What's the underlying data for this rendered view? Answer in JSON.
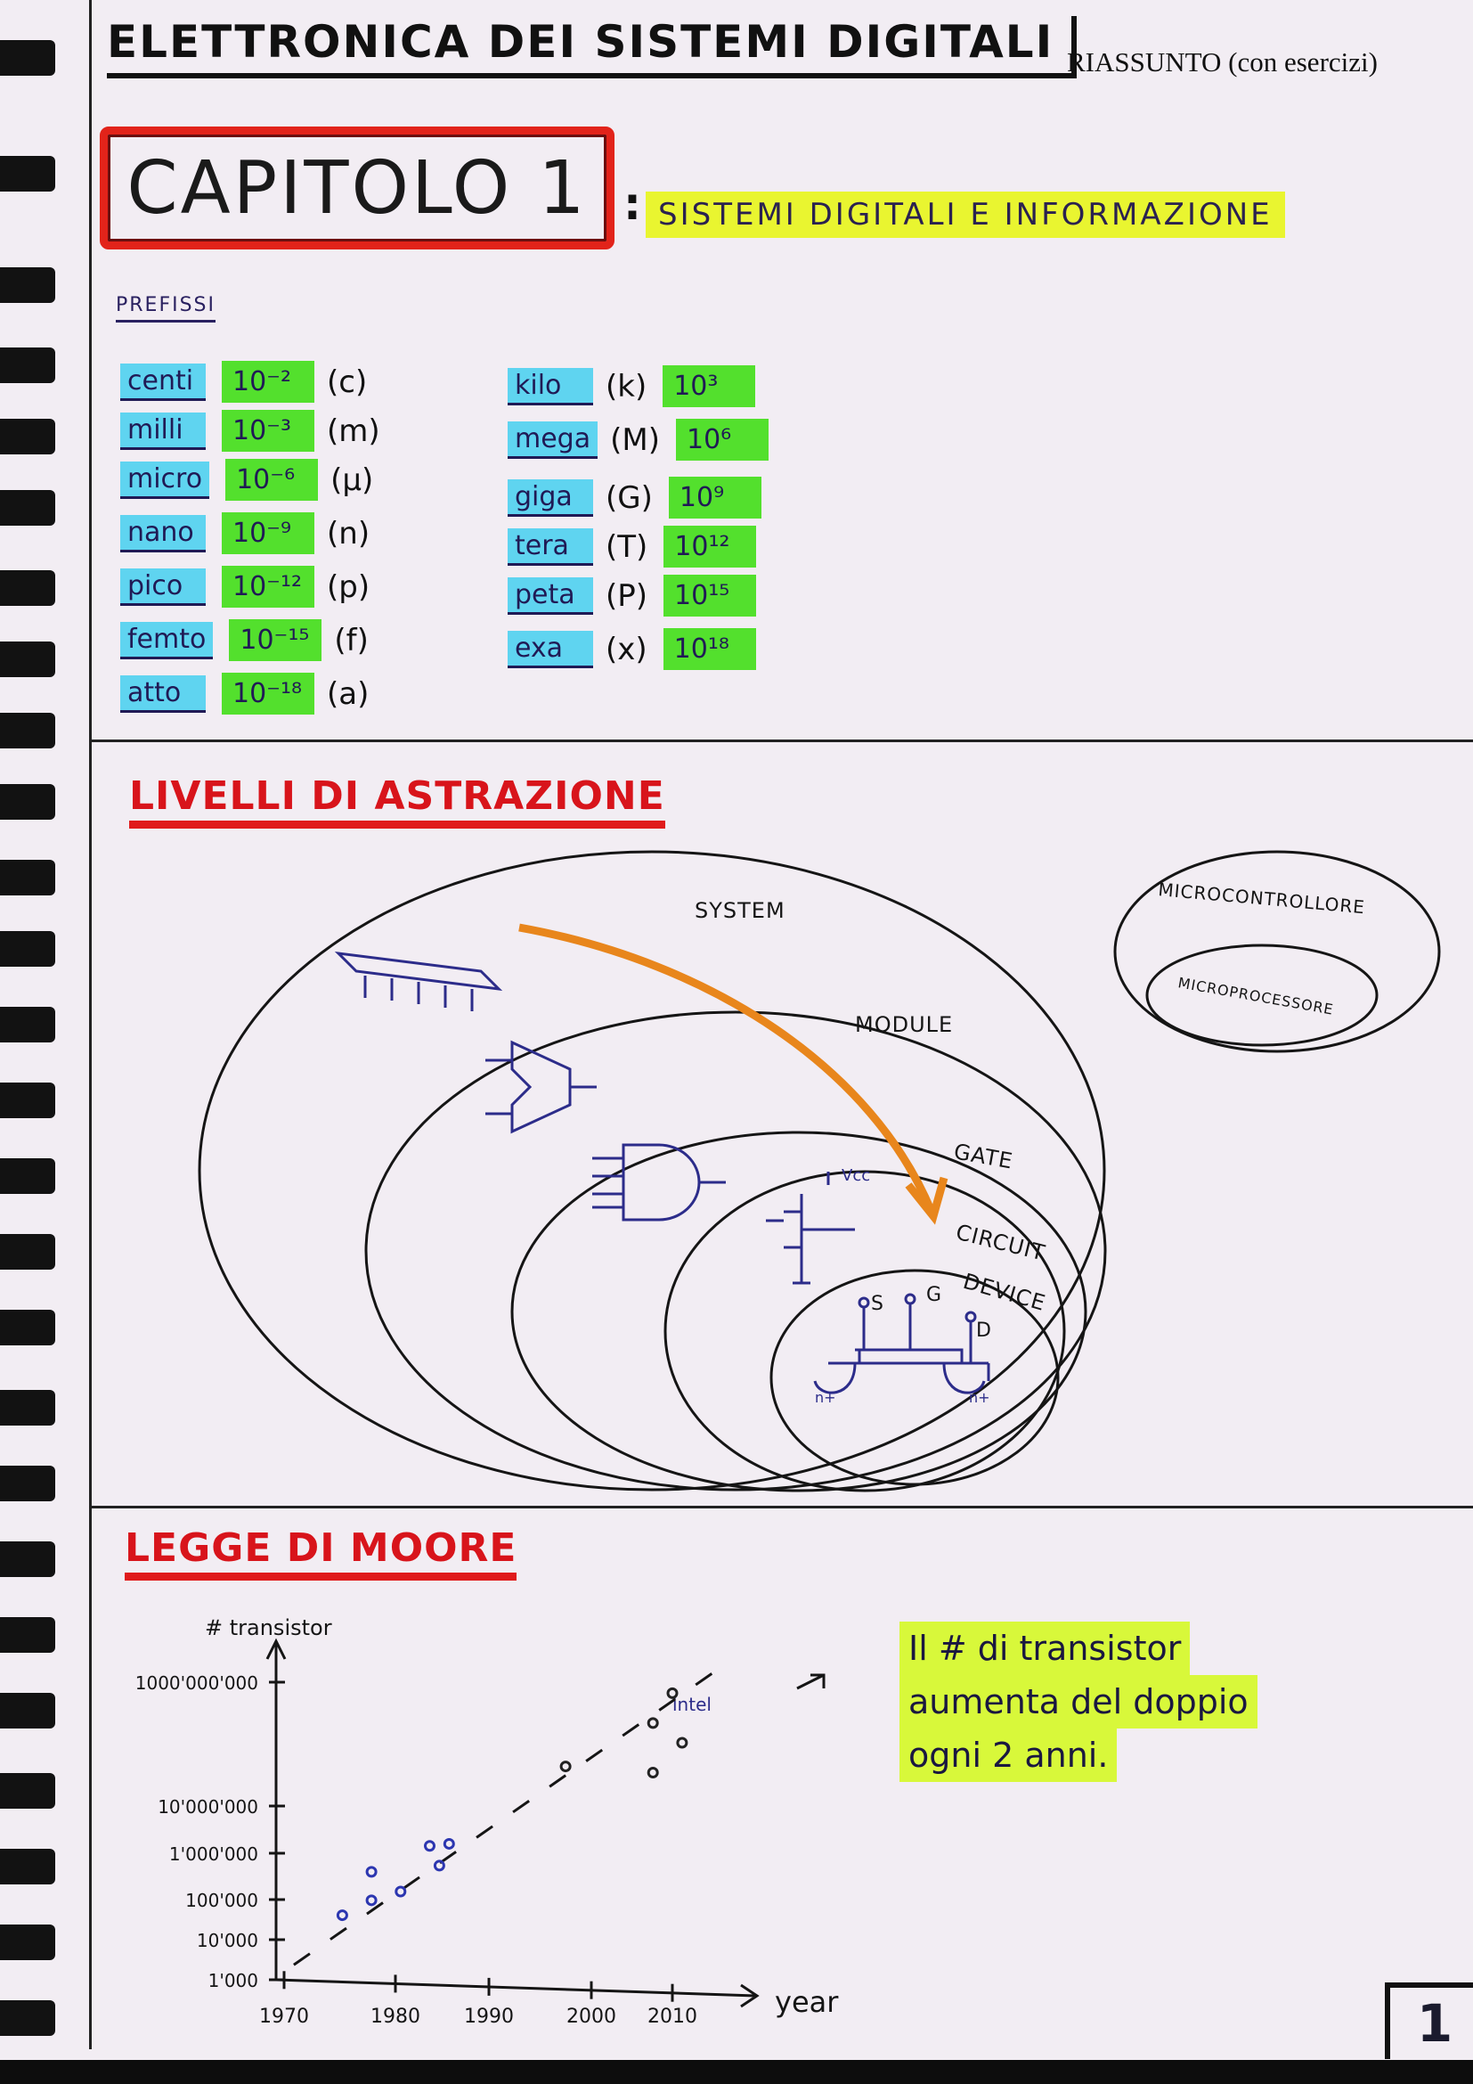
{
  "header": {
    "title": "ELETTRONICA DEI SISTEMI DIGITALI",
    "typed_label": "RIASSUNTO (con esercizi)"
  },
  "chapter": {
    "label": "CAPITOLO 1",
    "subtitle": "SISTEMI DIGITALI E INFORMAZIONE"
  },
  "prefixes": {
    "heading": "PREFISSI",
    "small": [
      {
        "name": "centi",
        "value": "10⁻²",
        "symbol": "(c)"
      },
      {
        "name": "milli",
        "value": "10⁻³",
        "symbol": "(m)"
      },
      {
        "name": "micro",
        "value": "10⁻⁶",
        "symbol": "(μ)"
      },
      {
        "name": "nano",
        "value": "10⁻⁹",
        "symbol": "(n)"
      },
      {
        "name": "pico",
        "value": "10⁻¹²",
        "symbol": "(p)"
      },
      {
        "name": "femto",
        "value": "10⁻¹⁵",
        "symbol": "(f)"
      },
      {
        "name": "atto",
        "value": "10⁻¹⁸",
        "symbol": "(a)"
      }
    ],
    "large": [
      {
        "name": "kilo",
        "value": "10³",
        "symbol": "(k)"
      },
      {
        "name": "mega",
        "value": "10⁶",
        "symbol": "(M)"
      },
      {
        "name": "giga",
        "value": "10⁹",
        "symbol": "(G)"
      },
      {
        "name": "tera",
        "value": "10¹²",
        "symbol": "(T)"
      },
      {
        "name": "peta",
        "value": "10¹⁵",
        "symbol": "(P)"
      },
      {
        "name": "exa",
        "value": "10¹⁸",
        "symbol": "(x)"
      }
    ]
  },
  "abstraction": {
    "heading": "LIVELLI DI ASTRAZIONE",
    "levels": [
      "SYSTEM",
      "MODULE",
      "GATE",
      "CIRCUIT",
      "DEVICE"
    ],
    "micro": [
      "MICROCONTROLLORE",
      "MICROPROCESSORE"
    ],
    "circuit_label": "Vcc",
    "device_terminals": [
      "S",
      "G",
      "D"
    ],
    "device_regions": [
      "n+",
      "n+"
    ],
    "arrow_color": "#e8861c"
  },
  "moore": {
    "heading": "LEGGE DI MOORE",
    "y_label": "# transistor",
    "x_label": "year",
    "y_ticks": [
      "1'000",
      "10'000",
      "100'000",
      "1'000'000",
      "10'000'000",
      "1000'000'000"
    ],
    "x_ticks": [
      "1970",
      "1980",
      "1990",
      "2000",
      "2010"
    ],
    "annotation": "intel",
    "note_lines": [
      "Il # di transistor",
      "aumenta del doppio",
      "ogni 2 anni."
    ],
    "points_blue": [
      [
        1976,
        20000
      ],
      [
        1979,
        40000
      ],
      [
        1979,
        150000
      ],
      [
        1982,
        60000
      ],
      [
        1985,
        500000
      ],
      [
        1987,
        550000
      ],
      [
        1986,
        200000
      ]
    ],
    "points_black": [
      [
        1999,
        20000000
      ],
      [
        2008,
        15000000
      ],
      [
        2008,
        150000000
      ],
      [
        2010,
        600000000
      ],
      [
        2011,
        60000000
      ]
    ],
    "trend": [
      [
        1971,
        2000
      ],
      [
        2015,
        2000000000
      ]
    ]
  },
  "page_number": "1"
}
